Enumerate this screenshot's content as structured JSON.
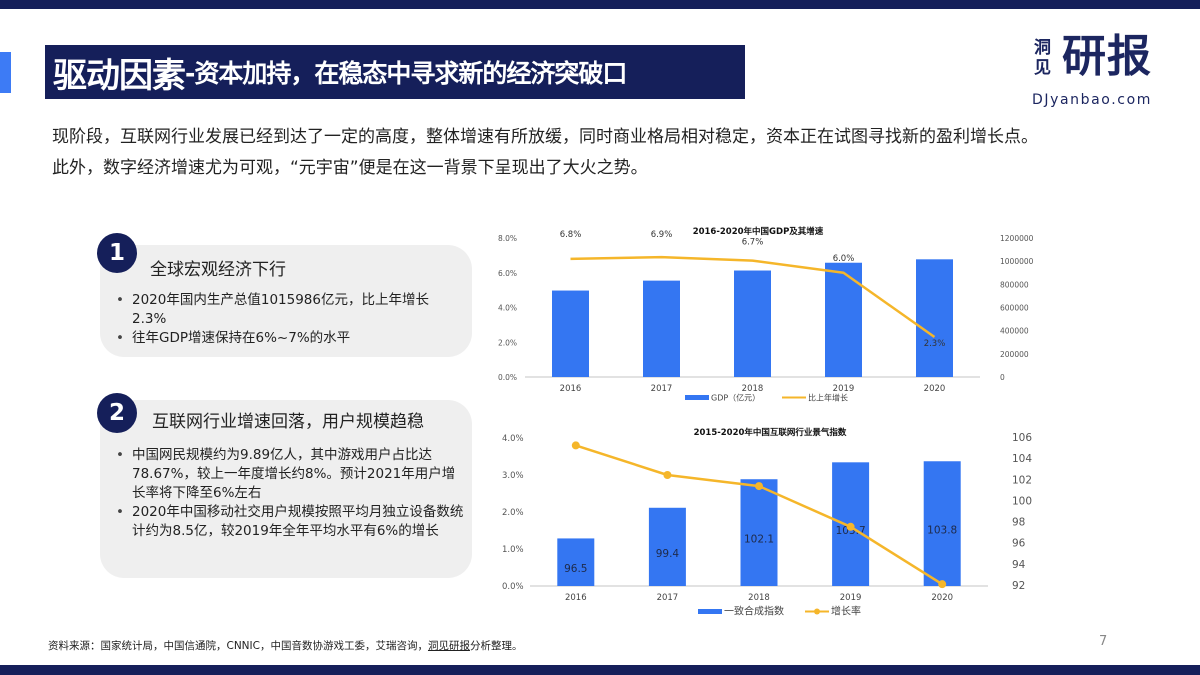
{
  "header": {
    "title_main": "驱动因素",
    "title_sub": "-资本加持，在稳态中寻求新的经济突破口",
    "logo": {
      "small_chars": "洞见",
      "big_chars": "研报",
      "url": "DJyanbao.com"
    }
  },
  "intro": {
    "line1": "现阶段，互联网行业发展已经到达了一定的高度，整体增速有所放缓，同时商业格局相对稳定，资本正在试图寻找新的盈利增长点。",
    "line2": "此外，数字经济增速尤为可观，“元宇宙”便是在这一背景下呈现出了大火之势。"
  },
  "cards": [
    {
      "number": "1",
      "title": "全球宏观经济下行",
      "bullets": [
        "2020年国内生产总值1015986亿元，比上年增长2.3%",
        "往年GDP增速保持在6%~7%的水平"
      ]
    },
    {
      "number": "2",
      "title": "互联网行业增速回落，用户规模趋稳",
      "bullets": [
        "中国网民规模约为9.89亿人，其中游戏用户占比达78.67%，较上一年度增长约8%。预计2021年用户增长率将下降至6%左右",
        "2020年中国移动社交用户规模按照平均月独立设备数统计约为8.5亿，较2019年全年平均水平有6%的增长"
      ]
    }
  ],
  "chart_data": [
    {
      "type": "bar",
      "title": "2016-2020年中国GDP及其增速",
      "categories": [
        "2016",
        "2017",
        "2018",
        "2019",
        "2020"
      ],
      "series": [
        {
          "name": "GDP（亿元）",
          "type": "bar",
          "axis": "right",
          "color": "#3476f2",
          "values": [
            746395,
            832036,
            919281,
            986515,
            1015986
          ]
        },
        {
          "name": "比上年增长",
          "type": "line",
          "axis": "left",
          "color": "#f5b62a",
          "values": [
            6.8,
            6.9,
            6.7,
            6.0,
            2.3
          ],
          "labels": [
            "6.8%",
            "6.9%",
            "6.7%",
            "6.0%",
            "2.3%"
          ]
        }
      ],
      "left_axis": {
        "ticks": [
          "0.0%",
          "2.0%",
          "4.0%",
          "6.0%",
          "8.0%"
        ],
        "range": [
          0,
          8
        ]
      },
      "right_axis": {
        "ticks": [
          "0",
          "200000",
          "400000",
          "600000",
          "800000",
          "1000000",
          "1200000"
        ],
        "range": [
          0,
          1200000
        ]
      },
      "legend_position": "bottom"
    },
    {
      "type": "bar",
      "title": "2015-2020年中国互联网行业景气指数",
      "categories": [
        "2016",
        "2017",
        "2018",
        "2019",
        "2020"
      ],
      "series": [
        {
          "name": "一致合成指数",
          "type": "bar",
          "axis": "right",
          "color": "#3476f2",
          "values": [
            96.5,
            99.4,
            102.1,
            103.7,
            103.8
          ],
          "labels": [
            "96.5",
            "99.4",
            "102.1",
            "103.7",
            "103.8"
          ]
        },
        {
          "name": "增长率",
          "type": "line",
          "axis": "left",
          "color": "#f5b62a",
          "marker": "circle",
          "values": [
            3.8,
            3.0,
            2.7,
            1.6,
            0.05
          ]
        }
      ],
      "left_axis": {
        "ticks": [
          "0.0%",
          "1.0%",
          "2.0%",
          "3.0%",
          "4.0%"
        ],
        "range": [
          0,
          4
        ]
      },
      "right_axis": {
        "ticks": [
          "92",
          "94",
          "96",
          "98",
          "100",
          "102",
          "104",
          "106"
        ],
        "range": [
          92,
          106
        ]
      },
      "legend_position": "bottom"
    }
  ],
  "footer": {
    "source_prefix": "资料来源：国家统计局，中国信通院，CNNIC，中国音数协游戏工委，艾瑞咨询，",
    "source_link": "洞见研报",
    "source_suffix": "分析整理。",
    "page_number": "7"
  }
}
